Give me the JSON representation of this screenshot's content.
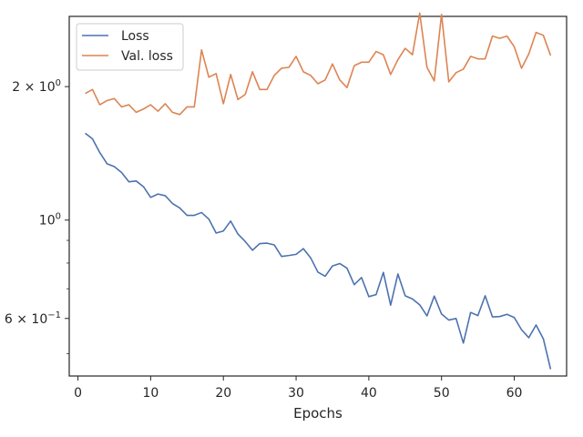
{
  "chart_data": {
    "type": "line",
    "title": "",
    "xlabel": "Epochs",
    "ylabel": "",
    "xlim": [
      -1.2,
      67.2
    ],
    "ylim": [
      0.445,
      2.88
    ],
    "yscale": "log",
    "grid": false,
    "legend_position": "top-left",
    "x_ticks": [
      0,
      10,
      20,
      30,
      40,
      50,
      60
    ],
    "x_tick_labels": [
      "0",
      "10",
      "20",
      "30",
      "40",
      "50",
      "60"
    ],
    "y_major_ticks": [
      {
        "value": 0.6,
        "label_base": "6 × 10",
        "label_exp": "−1"
      },
      {
        "value": 1.0,
        "label_base": "10",
        "label_exp": "0"
      },
      {
        "value": 2.0,
        "label_base": "2 × 10",
        "label_exp": "0"
      }
    ],
    "y_minor_ticks": [
      0.5,
      0.7,
      0.8,
      0.9
    ],
    "x": [
      1,
      2,
      3,
      4,
      5,
      6,
      7,
      8,
      9,
      10,
      11,
      12,
      13,
      14,
      15,
      16,
      17,
      18,
      19,
      20,
      21,
      22,
      23,
      24,
      25,
      26,
      27,
      28,
      29,
      30,
      31,
      32,
      33,
      34,
      35,
      36,
      37,
      38,
      39,
      40,
      41,
      42,
      43,
      44,
      45,
      46,
      47,
      48,
      49,
      50,
      51,
      52,
      53,
      54,
      55,
      56,
      57,
      58,
      59,
      60,
      61,
      62,
      63,
      64,
      65
    ],
    "series": [
      {
        "name": "Loss",
        "color": "#4c72b0",
        "values": [
          1.57,
          1.525,
          1.42,
          1.34,
          1.32,
          1.28,
          1.22,
          1.225,
          1.19,
          1.125,
          1.145,
          1.135,
          1.09,
          1.065,
          1.025,
          1.025,
          1.04,
          1.005,
          0.935,
          0.945,
          0.995,
          0.93,
          0.895,
          0.855,
          0.885,
          0.887,
          0.879,
          0.828,
          0.832,
          0.837,
          0.862,
          0.822,
          0.763,
          0.747,
          0.788,
          0.798,
          0.779,
          0.715,
          0.742,
          0.672,
          0.679,
          0.762,
          0.643,
          0.756,
          0.675,
          0.664,
          0.644,
          0.608,
          0.674,
          0.614,
          0.595,
          0.6,
          0.528,
          0.619,
          0.609,
          0.675,
          0.605,
          0.606,
          0.613,
          0.603,
          0.566,
          0.543,
          0.58,
          0.54,
          0.461
        ]
      },
      {
        "name": "Val. loss",
        "color": "#dd8452",
        "values": [
          1.93,
          1.97,
          1.82,
          1.86,
          1.88,
          1.8,
          1.82,
          1.75,
          1.78,
          1.82,
          1.76,
          1.83,
          1.75,
          1.73,
          1.8,
          1.8,
          2.42,
          2.1,
          2.14,
          1.83,
          2.13,
          1.87,
          1.92,
          2.16,
          1.97,
          1.97,
          2.12,
          2.2,
          2.21,
          2.34,
          2.16,
          2.12,
          2.03,
          2.07,
          2.25,
          2.07,
          1.99,
          2.23,
          2.27,
          2.27,
          2.4,
          2.36,
          2.13,
          2.3,
          2.44,
          2.36,
          2.93,
          2.21,
          2.06,
          2.91,
          2.05,
          2.15,
          2.19,
          2.34,
          2.31,
          2.31,
          2.6,
          2.57,
          2.6,
          2.46,
          2.2,
          2.37,
          2.65,
          2.61,
          2.35
        ]
      }
    ]
  }
}
